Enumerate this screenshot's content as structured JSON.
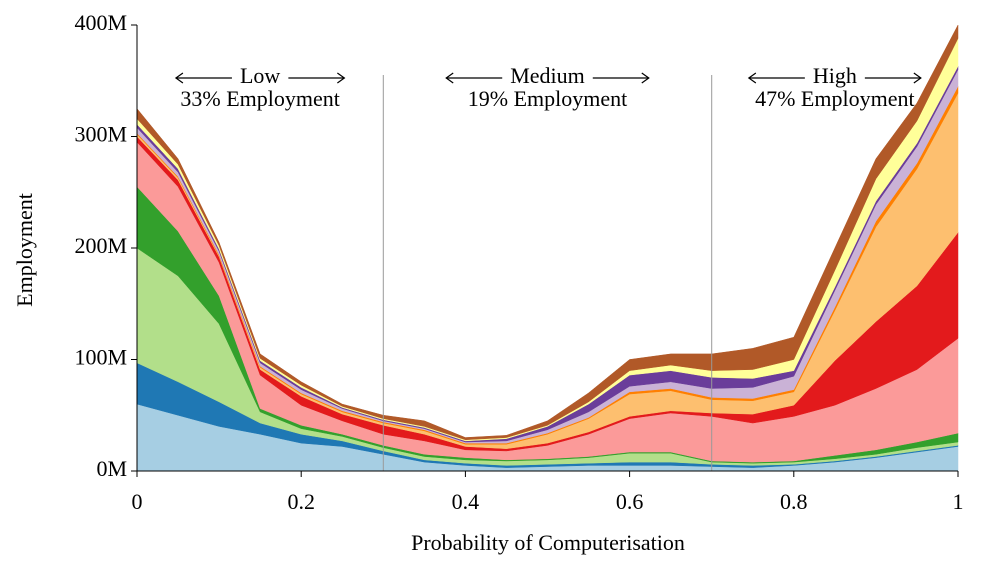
{
  "chart_data": {
    "type": "stacked_area",
    "xlabel": "Probability of Computerisation",
    "ylabel": "Employment",
    "x": [
      0,
      0.05,
      0.1,
      0.15,
      0.2,
      0.25,
      0.3,
      0.35,
      0.4,
      0.45,
      0.5,
      0.55,
      0.6,
      0.65,
      0.7,
      0.75,
      0.8,
      0.85,
      0.9,
      0.95,
      1
    ],
    "xlim": [
      0,
      1
    ],
    "xticks": [
      0,
      0.2,
      0.4,
      0.6,
      0.8,
      1
    ],
    "ylim": [
      0,
      400000000
    ],
    "yticks": [
      {
        "value": 0,
        "label": "0M"
      },
      {
        "value": 100000000,
        "label": "100M"
      },
      {
        "value": 200000000,
        "label": "200M"
      },
      {
        "value": 300000000,
        "label": "300M"
      },
      {
        "value": 400000000,
        "label": "400M"
      }
    ],
    "dividers": [
      0.3,
      0.7
    ],
    "regions": [
      {
        "label": "Low",
        "text": "33% Employment"
      },
      {
        "label": "Medium",
        "text": "19% Employment"
      },
      {
        "label": "High",
        "text": "47% Employment"
      }
    ],
    "series": [
      {
        "color": "#a6cee3",
        "values": [
          60000000,
          50000000,
          40000000,
          33000000,
          25000000,
          22000000,
          15000000,
          8000000,
          5000000,
          3000000,
          4000000,
          5000000,
          5000000,
          5000000,
          4000000,
          3000000,
          5000000,
          8000000,
          12000000,
          17000000,
          22000000
        ]
      },
      {
        "color": "#1f78b4",
        "values": [
          37000000,
          30000000,
          22000000,
          10000000,
          8000000,
          5000000,
          3000000,
          2000000,
          2000000,
          2000000,
          2000000,
          2000000,
          3000000,
          3000000,
          2000000,
          2000000,
          1000000,
          1000000,
          1000000,
          1000000,
          1000000
        ]
      },
      {
        "color": "#b2df8a",
        "values": [
          103000000,
          95000000,
          70000000,
          10000000,
          5000000,
          4000000,
          3000000,
          3000000,
          3000000,
          4000000,
          4000000,
          5000000,
          8000000,
          8000000,
          2000000,
          2000000,
          2000000,
          2000000,
          2000000,
          3000000,
          3000000
        ]
      },
      {
        "color": "#33a02c",
        "values": [
          55000000,
          40000000,
          25000000,
          3000000,
          3000000,
          2000000,
          2000000,
          2000000,
          2000000,
          1000000,
          1000000,
          1000000,
          1000000,
          1000000,
          1000000,
          1000000,
          1000000,
          3000000,
          4000000,
          5000000,
          8000000
        ]
      },
      {
        "color": "#fb9a99",
        "values": [
          40000000,
          40000000,
          30000000,
          30000000,
          18000000,
          12000000,
          10000000,
          12000000,
          7000000,
          8000000,
          12000000,
          20000000,
          30000000,
          35000000,
          40000000,
          35000000,
          40000000,
          45000000,
          55000000,
          65000000,
          85000000
        ]
      },
      {
        "color": "#e31a1c",
        "values": [
          5000000,
          6000000,
          5000000,
          5000000,
          8000000,
          6000000,
          8000000,
          6000000,
          3000000,
          2000000,
          2000000,
          2000000,
          2000000,
          2000000,
          3000000,
          8000000,
          10000000,
          40000000,
          60000000,
          75000000,
          95000000
        ]
      },
      {
        "color": "#fdbf6f",
        "values": [
          2000000,
          2000000,
          1000000,
          2000000,
          2000000,
          2000000,
          2000000,
          3000000,
          2000000,
          4000000,
          8000000,
          12000000,
          20000000,
          18000000,
          12000000,
          12000000,
          12000000,
          45000000,
          85000000,
          105000000,
          125000000
        ]
      },
      {
        "color": "#ff7f00",
        "values": [
          1000000,
          1000000,
          1000000,
          1000000,
          1000000,
          1000000,
          1000000,
          1000000,
          1000000,
          1000000,
          1000000,
          1000000,
          2000000,
          2000000,
          2000000,
          2000000,
          2000000,
          3000000,
          5000000,
          5000000,
          6000000
        ]
      },
      {
        "color": "#cab2d6",
        "values": [
          5000000,
          4000000,
          3000000,
          3000000,
          3000000,
          2000000,
          1000000,
          1000000,
          1000000,
          2000000,
          3000000,
          5000000,
          5000000,
          6000000,
          8000000,
          10000000,
          12000000,
          15000000,
          15000000,
          15000000,
          15000000
        ]
      },
      {
        "color": "#6a3d9a",
        "values": [
          3000000,
          3000000,
          2000000,
          2000000,
          2000000,
          1000000,
          1000000,
          1000000,
          1000000,
          2000000,
          3000000,
          7000000,
          10000000,
          10000000,
          10000000,
          8000000,
          5000000,
          3000000,
          3000000,
          3000000,
          3000000
        ]
      },
      {
        "color": "#ffff99",
        "values": [
          5000000,
          4000000,
          3000000,
          2000000,
          2000000,
          1000000,
          1000000,
          1000000,
          1000000,
          1000000,
          1000000,
          2000000,
          4000000,
          5000000,
          6000000,
          8000000,
          10000000,
          15000000,
          20000000,
          20000000,
          25000000
        ]
      },
      {
        "color": "#b15928",
        "values": [
          9000000,
          5000000,
          3000000,
          4000000,
          3000000,
          2000000,
          3000000,
          5000000,
          2000000,
          2000000,
          4000000,
          8000000,
          10000000,
          10000000,
          15000000,
          19000000,
          20000000,
          20000000,
          18000000,
          16000000,
          12000000
        ]
      }
    ]
  }
}
